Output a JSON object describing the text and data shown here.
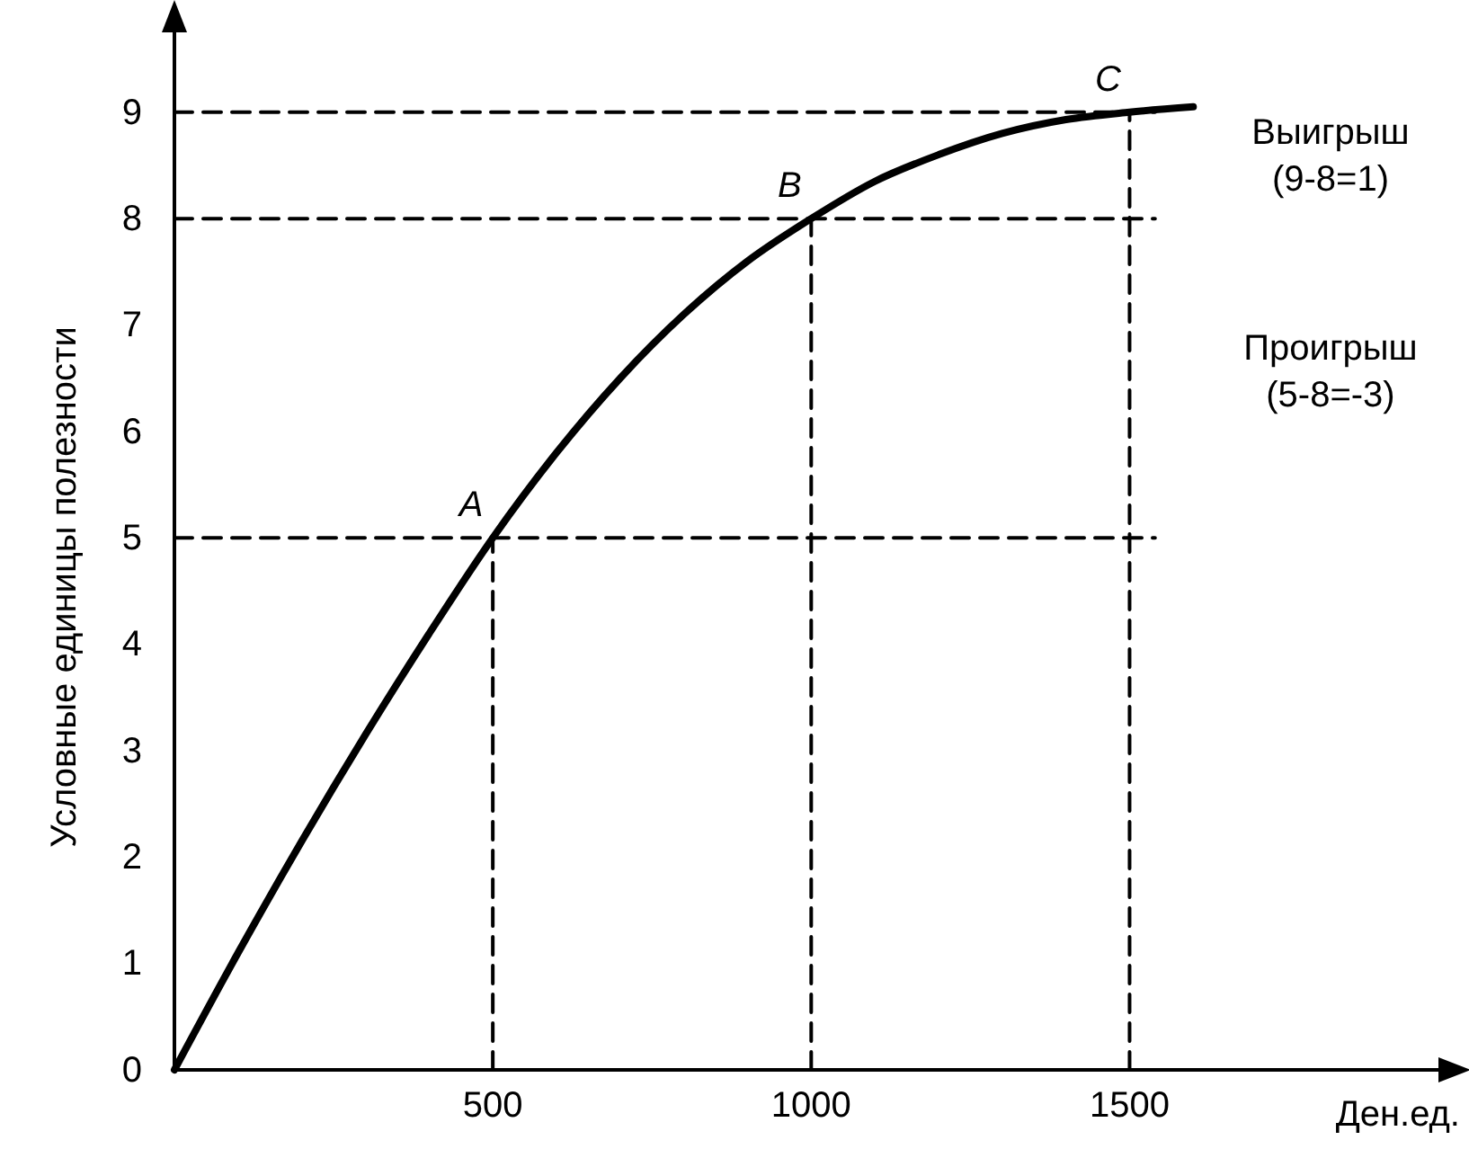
{
  "chart_data": {
    "type": "line",
    "xlabel": "Ден.ед.",
    "ylabel": "Условные единицы полезности",
    "xlim": [
      0,
      1985
    ],
    "ylim": [
      0,
      9.75
    ],
    "xticks": [
      500,
      1000,
      1500
    ],
    "yticks": [
      0,
      1,
      2,
      3,
      4,
      5,
      6,
      7,
      8,
      9
    ],
    "grid": false,
    "marker": "none",
    "series": [
      {
        "color": "#000000",
        "line_style": "solid",
        "x": [
          0,
          100,
          200,
          300,
          400,
          500,
          600,
          700,
          800,
          900,
          1000,
          1100,
          1200,
          1300,
          1400,
          1500,
          1600
        ],
        "values": [
          0,
          1.1,
          2.15,
          3.15,
          4.1,
          5,
          5.8,
          6.5,
          7.1,
          7.6,
          8,
          8.35,
          8.6,
          8.8,
          8.93,
          9,
          9.05
        ]
      },
      {
        "color": "#000000",
        "line_style": "dashed",
        "x": [
          0,
          1540
        ],
        "values": [
          5,
          5
        ]
      },
      {
        "color": "#000000",
        "line_style": "dashed",
        "x": [
          0,
          1540
        ],
        "values": [
          8,
          8
        ]
      },
      {
        "color": "#000000",
        "line_style": "dashed",
        "x": [
          0,
          1540
        ],
        "values": [
          9,
          9
        ]
      },
      {
        "color": "#000000",
        "line_style": "dashed",
        "x": [
          500,
          500
        ],
        "values": [
          0,
          5
        ]
      },
      {
        "color": "#000000",
        "line_style": "dashed",
        "x": [
          1000,
          1000
        ],
        "values": [
          0,
          8
        ]
      },
      {
        "color": "#000000",
        "line_style": "dashed",
        "x": [
          1500,
          1500
        ],
        "values": [
          0,
          9
        ]
      }
    ],
    "annotations": [
      {
        "text": "A",
        "x": 500,
        "y": 5
      },
      {
        "text": "B",
        "x": 1000,
        "y": 8
      },
      {
        "text": "C",
        "x": 1500,
        "y": 9
      },
      "Выигрыш (9-8=1)",
      "Проигрыш (5-8=-3)"
    ]
  }
}
